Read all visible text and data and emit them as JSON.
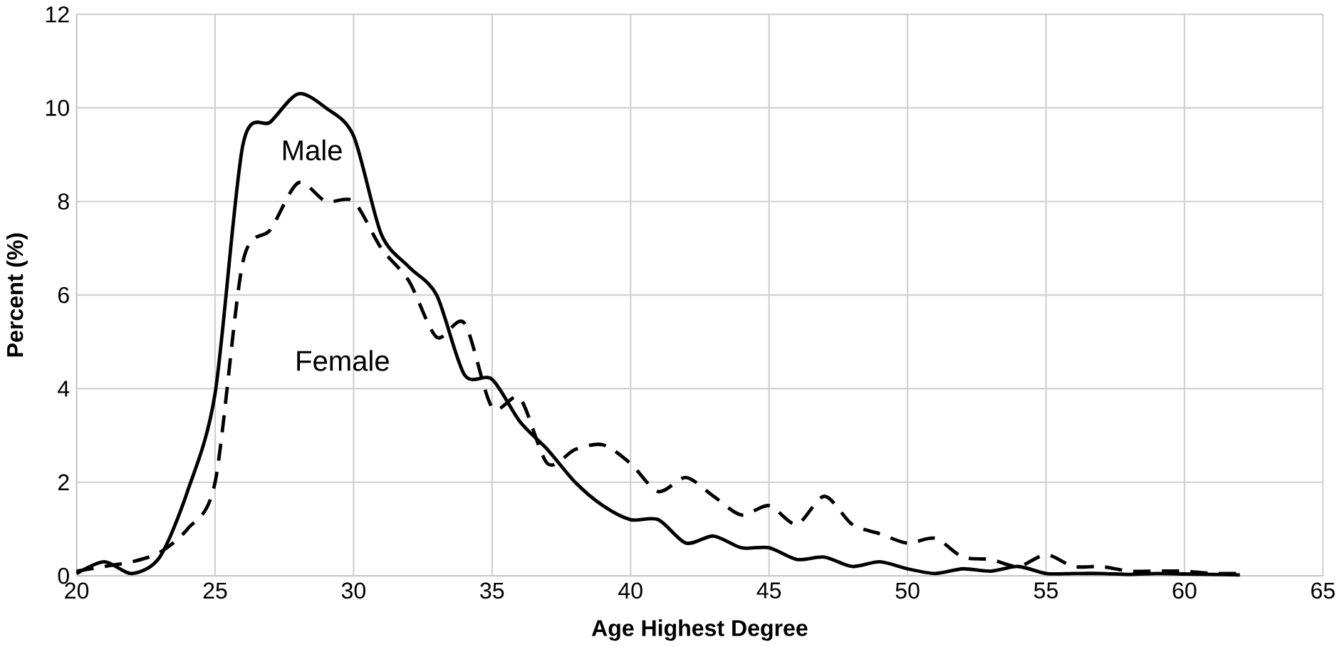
{
  "chart_data": {
    "type": "line",
    "xlabel": "Age Highest Degree",
    "ylabel": "Percent (%)",
    "x": [
      20,
      21,
      22,
      23,
      24,
      25,
      26,
      27,
      28,
      29,
      30,
      31,
      32,
      33,
      34,
      35,
      36,
      37,
      38,
      39,
      40,
      41,
      42,
      43,
      44,
      45,
      46,
      47,
      48,
      49,
      50,
      51,
      52,
      53,
      54,
      55,
      56,
      57,
      58,
      59,
      60,
      61,
      62
    ],
    "series": [
      {
        "name": "Male",
        "color": "#000000",
        "line_style": "solid",
        "values": [
          0.05,
          0.3,
          0.05,
          0.4,
          1.8,
          3.9,
          9.2,
          9.7,
          10.3,
          10.0,
          9.4,
          7.3,
          6.6,
          6.0,
          4.3,
          4.2,
          3.3,
          2.7,
          2.0,
          1.5,
          1.2,
          1.2,
          0.7,
          0.85,
          0.6,
          0.6,
          0.35,
          0.4,
          0.2,
          0.3,
          0.15,
          0.05,
          0.15,
          0.1,
          0.2,
          0.05,
          0.05,
          0.05,
          0.03,
          0.05,
          0.04,
          0.03,
          0.02
        ]
      },
      {
        "name": "Female",
        "color": "#000000",
        "line_style": "dashed",
        "values": [
          0.1,
          0.2,
          0.3,
          0.5,
          1.0,
          2.0,
          6.7,
          7.4,
          8.4,
          8.0,
          8.0,
          7.0,
          6.3,
          5.1,
          5.4,
          3.6,
          3.8,
          2.4,
          2.7,
          2.8,
          2.4,
          1.8,
          2.1,
          1.7,
          1.3,
          1.5,
          1.1,
          1.7,
          1.1,
          0.9,
          0.7,
          0.8,
          0.4,
          0.35,
          0.2,
          0.45,
          0.2,
          0.2,
          0.1,
          0.1,
          0.1,
          0.05,
          0.05
        ]
      }
    ],
    "xlim": [
      20,
      65
    ],
    "xticks": [
      20,
      25,
      30,
      35,
      40,
      45,
      50,
      55,
      60,
      65
    ],
    "ylim": [
      0,
      12
    ],
    "yticks": [
      0,
      2,
      4,
      6,
      8,
      10,
      12
    ],
    "grid": true,
    "legend": false,
    "marker": "none"
  }
}
